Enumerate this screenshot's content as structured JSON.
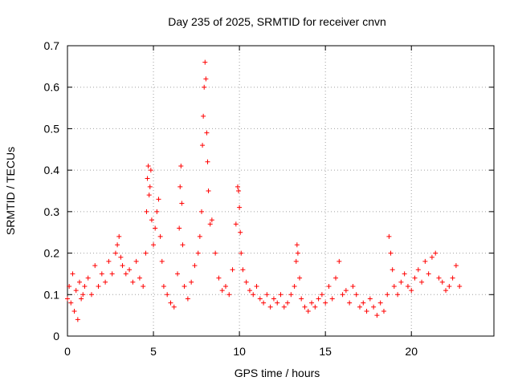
{
  "chart_data": {
    "type": "scatter",
    "title": "Day 235 of 2025, SRMTID for receiver cnvn",
    "xlabel": "GPS time / hours",
    "ylabel": "SRMTID / TECUs",
    "xlim": [
      0,
      24.8
    ],
    "ylim": [
      0,
      0.7
    ],
    "xticks": [
      0,
      5,
      10,
      15,
      20
    ],
    "xtick_labels": [
      "0",
      "5",
      "10",
      "15",
      "20"
    ],
    "yticks": [
      0,
      0.1,
      0.2,
      0.3,
      0.4,
      0.5,
      0.6,
      0.7
    ],
    "ytick_labels": [
      "0",
      "0.1",
      "0.2",
      "0.3",
      "0.4",
      "0.5",
      "0.6",
      "0.7"
    ],
    "grid": true,
    "marker": "plus",
    "color": "#ff0000",
    "series": [
      {
        "name": "SRMTID",
        "x": [
          0.0,
          0.1,
          0.2,
          0.3,
          0.4,
          0.5,
          0.6,
          0.7,
          0.8,
          0.9,
          1.0,
          1.2,
          1.4,
          1.6,
          1.8,
          2.0,
          2.2,
          2.4,
          2.6,
          2.8,
          2.9,
          3.0,
          3.1,
          3.2,
          3.4,
          3.6,
          3.8,
          4.0,
          4.2,
          4.4,
          4.55,
          4.6,
          4.65,
          4.7,
          4.75,
          4.8,
          4.85,
          4.9,
          5.0,
          5.1,
          5.2,
          5.3,
          5.4,
          5.5,
          5.6,
          5.8,
          6.0,
          6.2,
          6.4,
          6.5,
          6.55,
          6.6,
          6.65,
          6.7,
          6.8,
          7.0,
          7.2,
          7.4,
          7.6,
          7.7,
          7.8,
          7.85,
          7.9,
          7.95,
          8.0,
          8.05,
          8.1,
          8.15,
          8.2,
          8.3,
          8.4,
          8.6,
          8.8,
          9.0,
          9.2,
          9.4,
          9.6,
          9.8,
          9.9,
          9.95,
          10.0,
          10.05,
          10.1,
          10.2,
          10.4,
          10.6,
          10.8,
          11.0,
          11.2,
          11.4,
          11.6,
          11.8,
          12.0,
          12.2,
          12.4,
          12.6,
          12.8,
          13.0,
          13.2,
          13.3,
          13.35,
          13.4,
          13.5,
          13.6,
          13.8,
          14.0,
          14.2,
          14.4,
          14.6,
          14.8,
          15.0,
          15.2,
          15.4,
          15.6,
          15.8,
          16.0,
          16.2,
          16.4,
          16.6,
          16.8,
          17.0,
          17.2,
          17.4,
          17.6,
          17.8,
          18.0,
          18.2,
          18.4,
          18.6,
          18.7,
          18.8,
          18.9,
          19.0,
          19.2,
          19.4,
          19.6,
          19.8,
          20.0,
          20.2,
          20.4,
          20.6,
          20.8,
          21.0,
          21.2,
          21.4,
          21.6,
          21.8,
          22.0,
          22.2,
          22.4,
          22.6,
          22.8
        ],
        "y": [
          0.09,
          0.12,
          0.08,
          0.15,
          0.06,
          0.11,
          0.04,
          0.13,
          0.09,
          0.1,
          0.12,
          0.14,
          0.1,
          0.17,
          0.12,
          0.15,
          0.13,
          0.18,
          0.15,
          0.2,
          0.22,
          0.24,
          0.19,
          0.17,
          0.15,
          0.16,
          0.13,
          0.18,
          0.14,
          0.12,
          0.2,
          0.3,
          0.38,
          0.41,
          0.34,
          0.36,
          0.4,
          0.28,
          0.22,
          0.26,
          0.3,
          0.33,
          0.24,
          0.18,
          0.12,
          0.1,
          0.08,
          0.07,
          0.15,
          0.26,
          0.36,
          0.41,
          0.32,
          0.22,
          0.12,
          0.09,
          0.13,
          0.17,
          0.2,
          0.24,
          0.3,
          0.46,
          0.53,
          0.6,
          0.66,
          0.62,
          0.49,
          0.42,
          0.35,
          0.27,
          0.28,
          0.2,
          0.14,
          0.11,
          0.12,
          0.1,
          0.16,
          0.27,
          0.36,
          0.35,
          0.31,
          0.25,
          0.2,
          0.16,
          0.13,
          0.11,
          0.1,
          0.12,
          0.09,
          0.08,
          0.1,
          0.07,
          0.09,
          0.08,
          0.1,
          0.07,
          0.08,
          0.1,
          0.12,
          0.18,
          0.22,
          0.2,
          0.14,
          0.09,
          0.07,
          0.06,
          0.08,
          0.07,
          0.09,
          0.1,
          0.08,
          0.12,
          0.09,
          0.14,
          0.18,
          0.1,
          0.11,
          0.08,
          0.12,
          0.1,
          0.07,
          0.08,
          0.06,
          0.09,
          0.07,
          0.05,
          0.08,
          0.06,
          0.1,
          0.24,
          0.2,
          0.16,
          0.12,
          0.1,
          0.13,
          0.15,
          0.12,
          0.11,
          0.14,
          0.16,
          0.13,
          0.18,
          0.15,
          0.19,
          0.2,
          0.14,
          0.13,
          0.11,
          0.12,
          0.14,
          0.17,
          0.12
        ]
      }
    ]
  }
}
